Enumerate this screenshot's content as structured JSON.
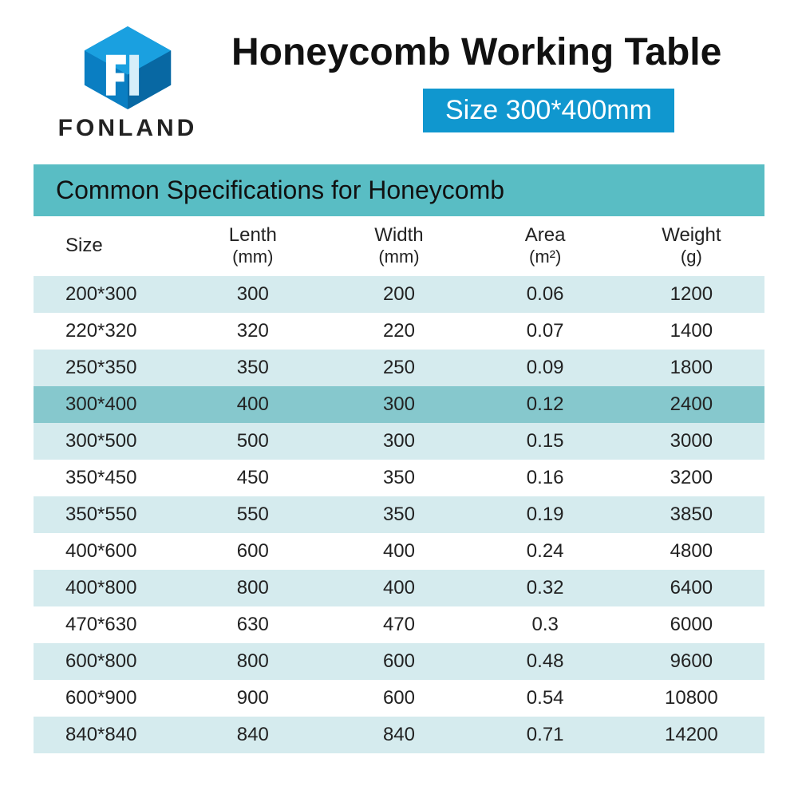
{
  "brand": {
    "name": "FONLAND"
  },
  "header": {
    "title": "Honeycomb Working Table",
    "size_badge": "Size 300*400mm"
  },
  "colors": {
    "badge_bg": "#1097cf",
    "badge_text": "#ffffff",
    "spec_header_bg": "#59bdc4",
    "row_even_bg": "#d5ebee",
    "row_odd_bg": "#ffffff",
    "row_highlight_bg": "#86c8cd",
    "logo_blue": "#0a7ec2",
    "text": "#1a1a1a"
  },
  "table": {
    "title": "Common Specifications for Honeycomb",
    "columns": [
      {
        "label": "Size",
        "unit": ""
      },
      {
        "label": "Lenth",
        "unit": "(mm)"
      },
      {
        "label": "Width",
        "unit": "(mm)"
      },
      {
        "label": "Area",
        "unit": "(m²)"
      },
      {
        "label": "Weight",
        "unit": "(g)"
      }
    ],
    "highlight_index": 3,
    "rows": [
      [
        "200*300",
        "300",
        "200",
        "0.06",
        "1200"
      ],
      [
        "220*320",
        "320",
        "220",
        "0.07",
        "1400"
      ],
      [
        "250*350",
        "350",
        "250",
        "0.09",
        "1800"
      ],
      [
        "300*400",
        "400",
        "300",
        "0.12",
        "2400"
      ],
      [
        "300*500",
        "500",
        "300",
        "0.15",
        "3000"
      ],
      [
        "350*450",
        "450",
        "350",
        "0.16",
        "3200"
      ],
      [
        "350*550",
        "550",
        "350",
        "0.19",
        "3850"
      ],
      [
        "400*600",
        "600",
        "400",
        "0.24",
        "4800"
      ],
      [
        "400*800",
        "800",
        "400",
        "0.32",
        "6400"
      ],
      [
        "470*630",
        "630",
        "470",
        "0.3",
        "6000"
      ],
      [
        "600*800",
        "800",
        "600",
        "0.48",
        "9600"
      ],
      [
        "600*900",
        "900",
        "600",
        "0.54",
        "10800"
      ],
      [
        "840*840",
        "840",
        "840",
        "0.71",
        "14200"
      ]
    ]
  }
}
